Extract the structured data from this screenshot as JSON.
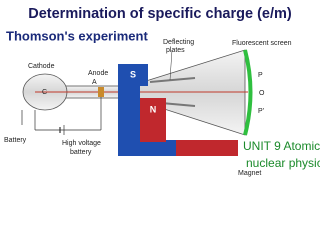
{
  "header": {
    "title": "Determination of specific charge (e/m)",
    "subtitle": "Thomson's experiment"
  },
  "diagram": {
    "cathode": "Cathode",
    "cathode_mark": "C",
    "anode_mark": "A",
    "anode": "Anode",
    "deflecting_1": "Deflecting",
    "deflecting_2": "plates",
    "screen": "Fluorescent screen",
    "point_p": "P",
    "point_o": "O",
    "point_p2": "P'",
    "south": "S",
    "north": "N",
    "battery": "Battery",
    "hv_1": "High voltage",
    "hv_2": "battery",
    "magnet": "Magnet"
  },
  "unit": {
    "line1": "UNIT 9 Atomic &",
    "line2": "nuclear physics"
  }
}
